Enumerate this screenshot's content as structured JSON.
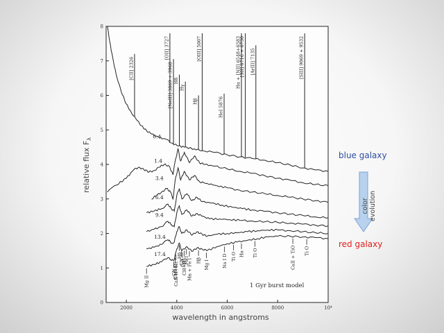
{
  "chart_data": {
    "type": "line",
    "xlabel": "wavelength in angstroms",
    "ylabel": "relative flux F",
    "ylabel_sub": "λ",
    "xlim": [
      1200,
      10000
    ],
    "ylim": [
      0,
      8
    ],
    "x_ticks": [
      {
        "value": 2000,
        "label": "2000"
      },
      {
        "value": 4000,
        "label": "4000"
      },
      {
        "value": 6000,
        "label": "6000"
      },
      {
        "value": 8000,
        "label": "8000"
      },
      {
        "value": 10000,
        "label": "10⁴"
      }
    ],
    "y_ticks": [
      {
        "value": 0,
        "label": "0"
      },
      {
        "value": 1,
        "label": "1"
      },
      {
        "value": 2,
        "label": "2"
      },
      {
        "value": 3,
        "label": "3"
      },
      {
        "value": 4,
        "label": "4"
      },
      {
        "value": 5,
        "label": "5"
      },
      {
        "value": 6,
        "label": "6"
      },
      {
        "value": 7,
        "label": "7"
      },
      {
        "value": 8,
        "label": "8"
      }
    ],
    "model_label": "1 Gyr burst model",
    "series": [
      {
        "name": "0.4",
        "label_x": 3050,
        "label_y": 4.75,
        "points": [
          [
            1250,
            8.0
          ],
          [
            1400,
            7.3
          ],
          [
            1600,
            6.6
          ],
          [
            1800,
            6.1
          ],
          [
            2000,
            5.75
          ],
          [
            2200,
            5.5
          ],
          [
            2400,
            5.3
          ],
          [
            2600,
            5.12
          ],
          [
            2800,
            4.98
          ],
          [
            3000,
            4.88
          ],
          [
            3300,
            4.78
          ],
          [
            3600,
            4.72
          ],
          [
            3800,
            4.62
          ],
          [
            4000,
            4.55
          ],
          [
            4300,
            4.5
          ],
          [
            4700,
            4.45
          ],
          [
            5000,
            4.4
          ],
          [
            5500,
            4.35
          ],
          [
            6000,
            4.28
          ],
          [
            6500,
            4.22
          ],
          [
            7000,
            4.17
          ],
          [
            7500,
            4.12
          ],
          [
            8000,
            4.05
          ],
          [
            8500,
            3.98
          ],
          [
            9000,
            3.9
          ],
          [
            9500,
            3.84
          ],
          [
            10000,
            3.8
          ]
        ]
      },
      {
        "name": "1.4",
        "label_x": 3100,
        "label_y": 4.05,
        "points": [
          [
            1250,
            3.2
          ],
          [
            1600,
            3.4
          ],
          [
            2000,
            3.6
          ],
          [
            2300,
            3.85
          ],
          [
            2500,
            3.92
          ],
          [
            2700,
            3.85
          ],
          [
            2900,
            3.78
          ],
          [
            3100,
            3.82
          ],
          [
            3300,
            3.92
          ],
          [
            3500,
            4.0
          ],
          [
            3700,
            3.95
          ],
          [
            3850,
            3.7
          ],
          [
            3950,
            4.15
          ],
          [
            4050,
            4.45
          ],
          [
            4150,
            4.1
          ],
          [
            4300,
            4.35
          ],
          [
            4500,
            4.05
          ],
          [
            4700,
            4.25
          ],
          [
            4900,
            4.05
          ],
          [
            5100,
            4.0
          ],
          [
            5500,
            3.95
          ],
          [
            6000,
            3.87
          ],
          [
            6500,
            3.8
          ],
          [
            7000,
            3.74
          ],
          [
            7500,
            3.67
          ],
          [
            8000,
            3.6
          ],
          [
            8500,
            3.54
          ],
          [
            9000,
            3.47
          ],
          [
            9500,
            3.42
          ],
          [
            10000,
            3.38
          ]
        ]
      },
      {
        "name": "3.4",
        "label_x": 3150,
        "label_y": 3.55,
        "points": [
          [
            3000,
            3.0
          ],
          [
            3200,
            3.1
          ],
          [
            3400,
            3.2
          ],
          [
            3600,
            3.3
          ],
          [
            3750,
            3.2
          ],
          [
            3850,
            3.0
          ],
          [
            3950,
            3.6
          ],
          [
            4050,
            3.9
          ],
          [
            4150,
            3.55
          ],
          [
            4300,
            3.8
          ],
          [
            4500,
            3.55
          ],
          [
            4700,
            3.68
          ],
          [
            4900,
            3.5
          ],
          [
            5200,
            3.45
          ],
          [
            5600,
            3.38
          ],
          [
            6000,
            3.32
          ],
          [
            6500,
            3.25
          ],
          [
            7000,
            3.2
          ],
          [
            7500,
            3.15
          ],
          [
            8000,
            3.1
          ],
          [
            8500,
            3.05
          ],
          [
            9000,
            3.0
          ],
          [
            9500,
            2.95
          ],
          [
            10000,
            2.9
          ]
        ]
      },
      {
        "name": "6.4",
        "label_x": 3150,
        "label_y": 3.0,
        "points": [
          [
            2800,
            2.6
          ],
          [
            3100,
            2.65
          ],
          [
            3400,
            2.72
          ],
          [
            3650,
            2.85
          ],
          [
            3800,
            2.7
          ],
          [
            3900,
            2.65
          ],
          [
            4000,
            3.1
          ],
          [
            4100,
            3.3
          ],
          [
            4200,
            3.0
          ],
          [
            4400,
            3.15
          ],
          [
            4600,
            2.95
          ],
          [
            4800,
            3.05
          ],
          [
            5000,
            2.92
          ],
          [
            5400,
            2.88
          ],
          [
            5800,
            2.82
          ],
          [
            6200,
            2.76
          ],
          [
            6600,
            2.72
          ],
          [
            7000,
            2.68
          ],
          [
            7500,
            2.64
          ],
          [
            8000,
            2.6
          ],
          [
            8500,
            2.56
          ],
          [
            9000,
            2.52
          ],
          [
            9500,
            2.48
          ],
          [
            10000,
            2.45
          ]
        ]
      },
      {
        "name": "9.4",
        "label_x": 3150,
        "label_y": 2.48,
        "points": [
          [
            2800,
            2.05
          ],
          [
            3100,
            2.12
          ],
          [
            3400,
            2.2
          ],
          [
            3650,
            2.35
          ],
          [
            3800,
            2.25
          ],
          [
            3900,
            2.2
          ],
          [
            4000,
            2.6
          ],
          [
            4100,
            2.8
          ],
          [
            4200,
            2.55
          ],
          [
            4400,
            2.68
          ],
          [
            4600,
            2.5
          ],
          [
            4800,
            2.58
          ],
          [
            5000,
            2.5
          ],
          [
            5300,
            2.42
          ],
          [
            5700,
            2.42
          ],
          [
            6100,
            2.4
          ],
          [
            6500,
            2.38
          ],
          [
            7000,
            2.36
          ],
          [
            7500,
            2.34
          ],
          [
            8000,
            2.32
          ],
          [
            8500,
            2.3
          ],
          [
            9000,
            2.27
          ],
          [
            9500,
            2.24
          ],
          [
            10000,
            2.22
          ]
        ]
      },
      {
        "name": "13.4",
        "label_x": 3100,
        "label_y": 1.85,
        "points": [
          [
            2800,
            1.55
          ],
          [
            3100,
            1.6
          ],
          [
            3400,
            1.68
          ],
          [
            3650,
            1.82
          ],
          [
            3800,
            1.72
          ],
          [
            3900,
            1.75
          ],
          [
            4000,
            2.05
          ],
          [
            4100,
            2.2
          ],
          [
            4200,
            2.0
          ],
          [
            4400,
            2.1
          ],
          [
            4600,
            1.95
          ],
          [
            4800,
            2.05
          ],
          [
            5000,
            1.98
          ],
          [
            5200,
            1.92
          ],
          [
            5600,
            1.98
          ],
          [
            6000,
            2.0
          ],
          [
            6400,
            2.02
          ],
          [
            6800,
            2.05
          ],
          [
            7200,
            2.08
          ],
          [
            7600,
            2.1
          ],
          [
            8000,
            2.1
          ],
          [
            8500,
            2.08
          ],
          [
            9000,
            2.05
          ],
          [
            9500,
            2.02
          ],
          [
            10000,
            2.0
          ]
        ]
      },
      {
        "name": "17.4",
        "label_x": 3100,
        "label_y": 1.35,
        "points": [
          [
            2800,
            1.05
          ],
          [
            3100,
            1.1
          ],
          [
            3400,
            1.18
          ],
          [
            3650,
            1.3
          ],
          [
            3800,
            1.22
          ],
          [
            3900,
            1.25
          ],
          [
            4000,
            1.55
          ],
          [
            4100,
            1.72
          ],
          [
            4200,
            1.5
          ],
          [
            4400,
            1.62
          ],
          [
            4600,
            1.48
          ],
          [
            4800,
            1.58
          ],
          [
            5000,
            1.55
          ],
          [
            5200,
            1.5
          ],
          [
            5600,
            1.62
          ],
          [
            6000,
            1.7
          ],
          [
            6400,
            1.75
          ],
          [
            6800,
            1.8
          ],
          [
            7200,
            1.85
          ],
          [
            7600,
            1.9
          ],
          [
            8000,
            1.92
          ],
          [
            8500,
            1.92
          ],
          [
            9000,
            1.9
          ],
          [
            9500,
            1.88
          ],
          [
            10000,
            1.85
          ]
        ]
      }
    ],
    "emission_lines": [
      {
        "x": 2326,
        "top": 7.2,
        "label": "[CII] 2326"
      },
      {
        "x": 3727,
        "top": 7.8,
        "label": "[OII] 3727"
      },
      {
        "x": 3869,
        "top": 7.05,
        "label": "[NeIII] 3869 + 3968"
      },
      {
        "x": 4101,
        "top": 6.6,
        "label": "Hδ"
      },
      {
        "x": 4340,
        "top": 6.4,
        "label": "Hγ"
      },
      {
        "x": 4861,
        "top": 6.0,
        "label": "Hβ"
      },
      {
        "x": 5007,
        "top": 7.8,
        "label": "[OIII] 5007"
      },
      {
        "x": 5876,
        "top": 6.05,
        "label": "HeI 5876"
      },
      {
        "x": 6563,
        "top": 7.8,
        "label": "Hα + [NII] 6548+6583"
      },
      {
        "x": 6716,
        "top": 7.8,
        "label": "[SII] 6716 + 6730"
      },
      {
        "x": 7135,
        "top": 7.45,
        "label": "[ArIII] 7135"
      },
      {
        "x": 9069,
        "top": 7.8,
        "label": "[SIII] 9069 + 9532"
      }
    ],
    "absorption_labels": [
      {
        "x": 2800,
        "label": "Mg II"
      },
      {
        "x": 3883,
        "label": "CN"
      },
      {
        "x": 3933,
        "label": "CaII K"
      },
      {
        "x": 3968,
        "label": "CaII H+Hε"
      },
      {
        "x": 4101,
        "label": "Hδ"
      },
      {
        "x": 4180,
        "label": "CN"
      },
      {
        "x": 4226,
        "label": "CaI"
      },
      {
        "x": 4300,
        "label": "CH+Hγ"
      },
      {
        "x": 4383,
        "label": "Fe I"
      },
      {
        "x": 4500,
        "label": "Mn + Fe I"
      },
      {
        "x": 4861,
        "label": "Hβ"
      },
      {
        "x": 5175,
        "label": "Mg I"
      },
      {
        "x": 5893,
        "label": "Na I D"
      },
      {
        "x": 6250,
        "label": "Ti O"
      },
      {
        "x": 6563,
        "label": "Hα"
      },
      {
        "x": 7100,
        "label": "Ti O"
      },
      {
        "x": 8600,
        "label": "CaII + TiO"
      },
      {
        "x": 9150,
        "label": "Ti O"
      }
    ]
  },
  "annotations": {
    "blue_label": "blue galaxy",
    "red_label": "red galaxy",
    "evolution_label": "color evolution",
    "colors": {
      "blue": "#2d4ea0",
      "red": "#e0201c",
      "arrow_fill": "#b8d2ee",
      "arrow_stroke": "#7aa3d6"
    }
  }
}
